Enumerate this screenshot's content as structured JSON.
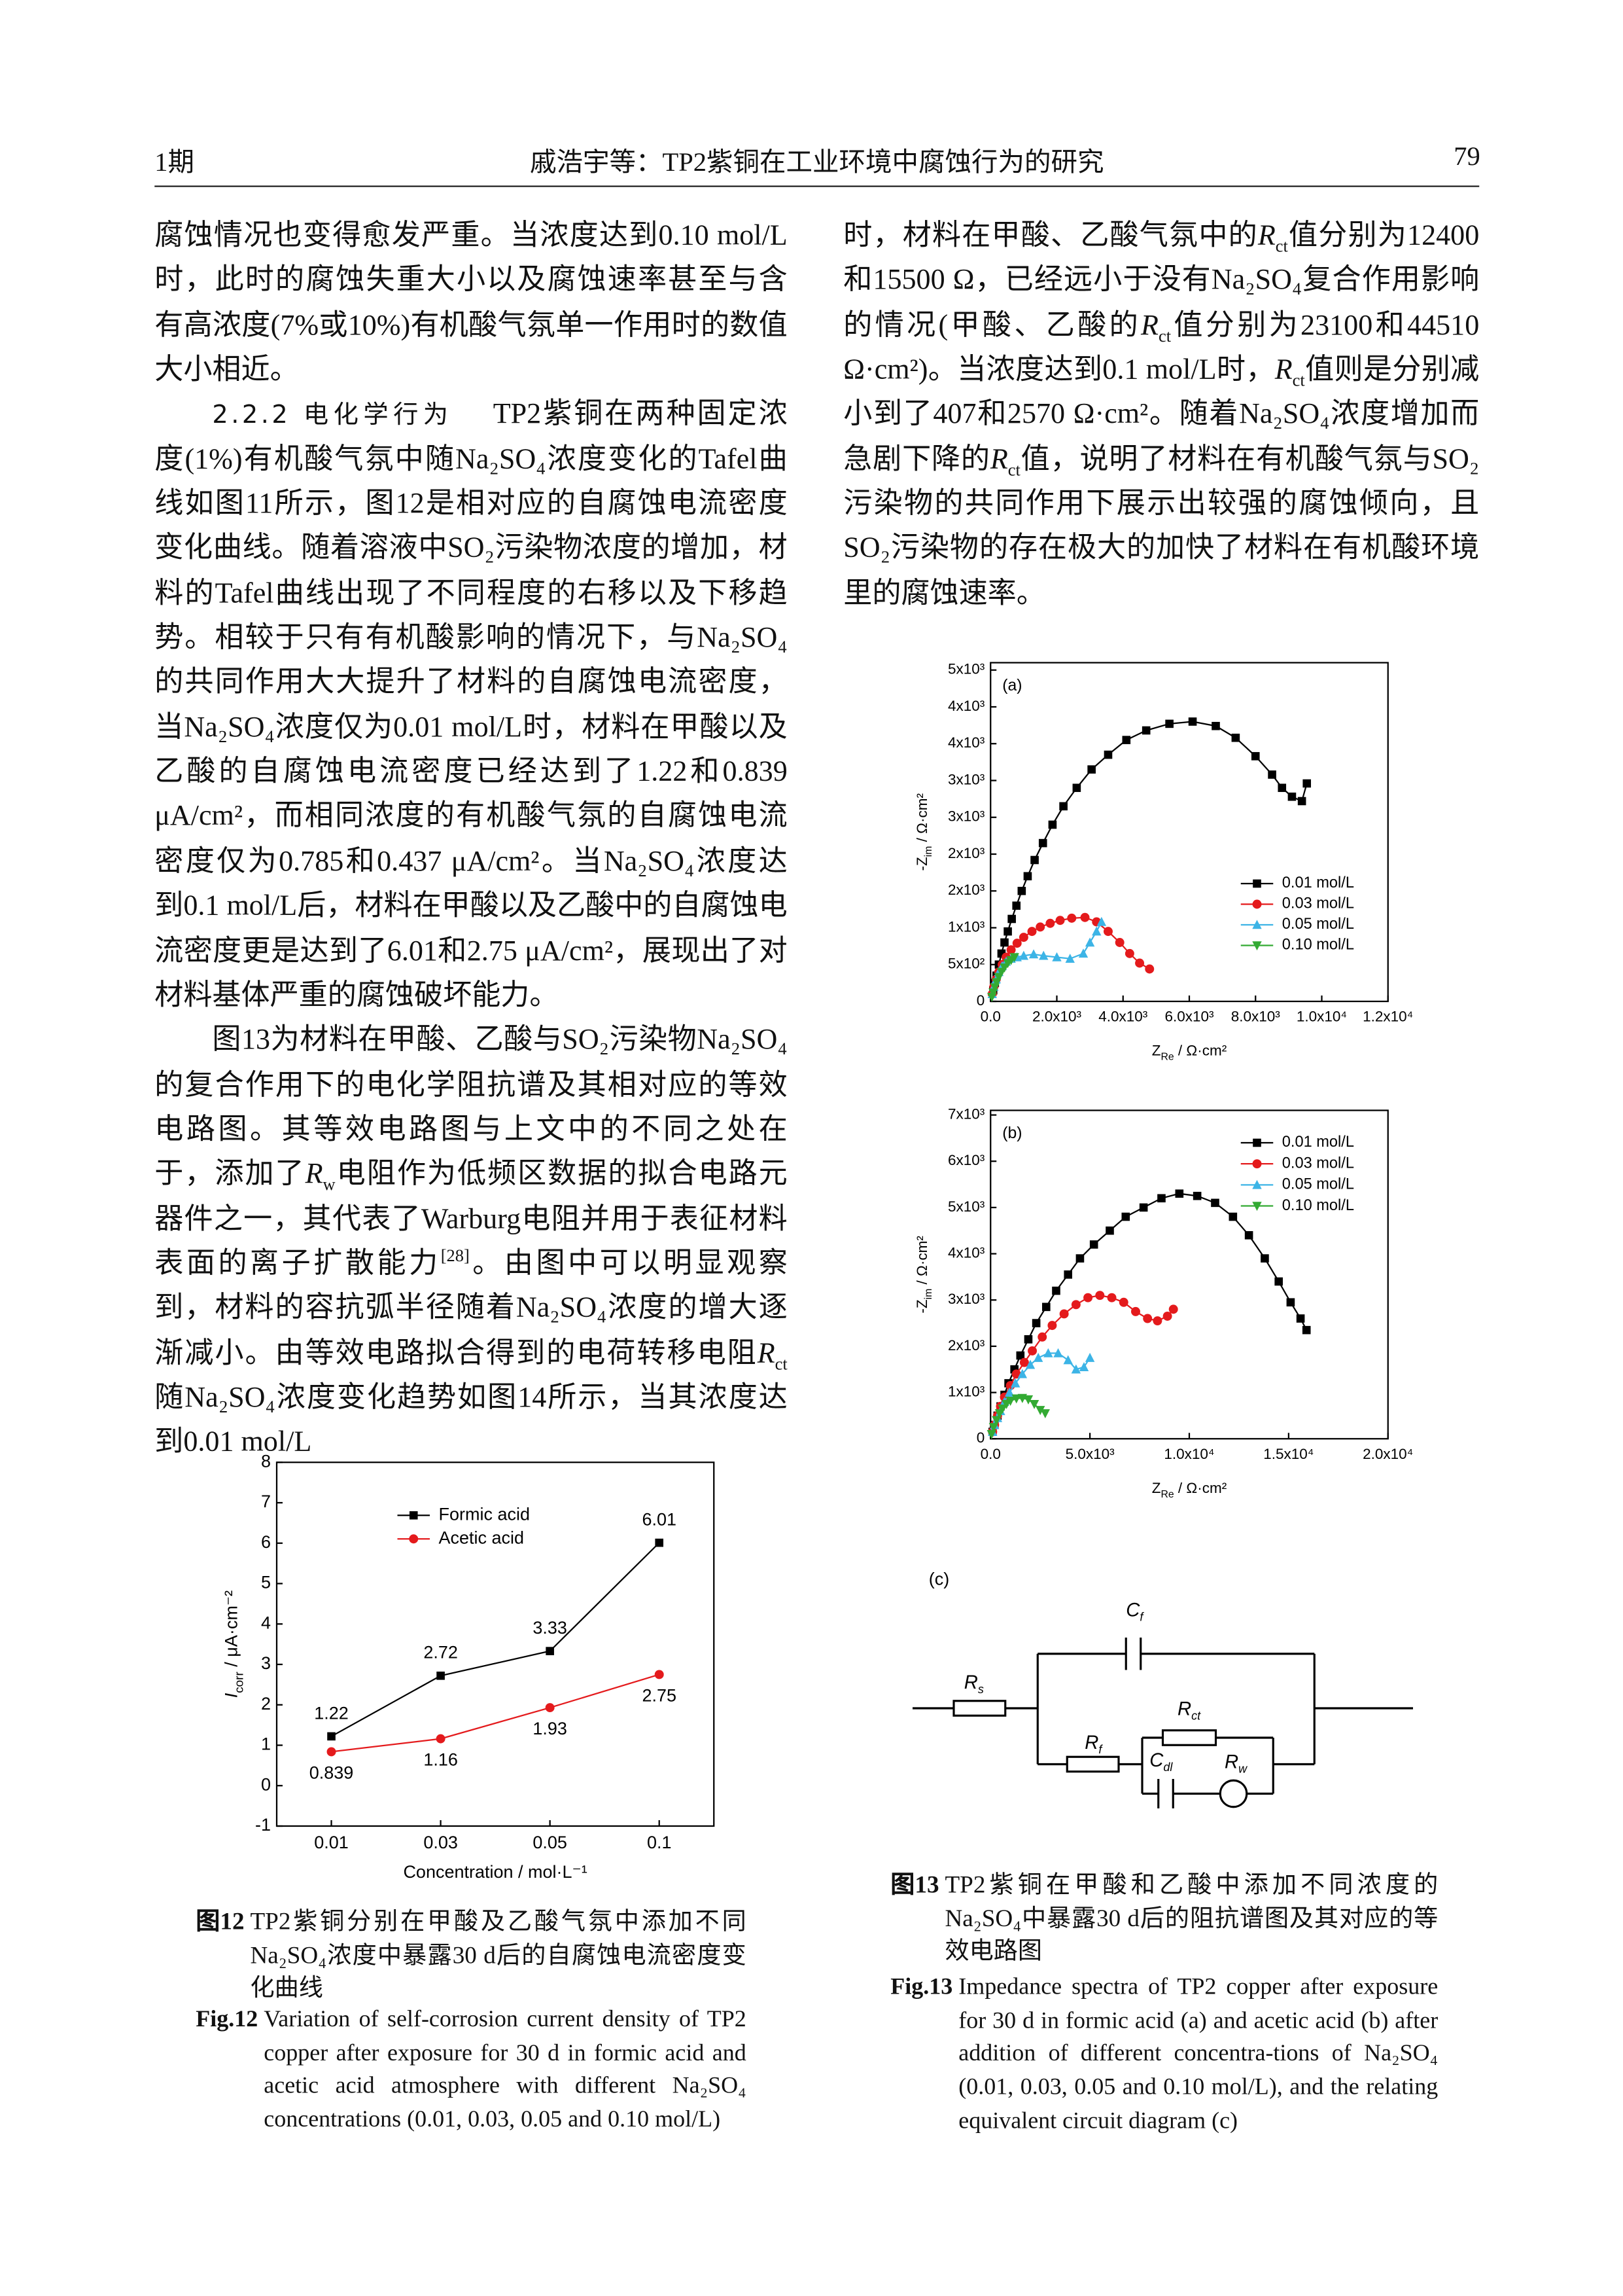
{
  "header": {
    "issue": "1期",
    "running_title": "戚浩宇等：TP2紫铜在工业环境中腐蚀行为的研究",
    "page_number": "79"
  },
  "left_column": {
    "paragraphs": [
      {
        "runs": [
          "腐蚀情况也变得愈发严重。当浓度达到0.10 mol/L时，此时的腐蚀失重大小以及腐蚀速率甚至与含有高浓度(7%或10%)有机酸气氛单一作用时的数值大小相近。"
        ]
      },
      {
        "heading": "2.2.2 电化学行为",
        "runs": [
          "TP2紫铜在两种固定浓度(1%)有机酸气氛中随Na₂SO₄浓度变化的Tafel曲线如图11所示，图12是相对应的自腐蚀电流密度变化曲线。随着溶液中SO₂污染物浓度的增加，材料的Tafel曲线出现了不同程度的右移以及下移趋势。相较于只有有机酸影响的情况下，与Na₂SO₄的共同作用大大提升了材料的自腐蚀电流密度，当Na₂SO₄浓度仅为0.01 mol/L时，材料在甲酸以及乙酸的自腐蚀电流密度已经达到了1.22和0.839 μA/cm²，而相同浓度的有机酸气氛的自腐蚀电流密度仅为0.785和0.437 μA/cm²。当Na₂SO₄浓度达到0.1 mol/L后，材料在甲酸以及乙酸中的自腐蚀电流密度更是达到了6.01和2.75 μA/cm²，展现出了对材料基体严重的腐蚀破坏能力。"
        ]
      },
      {
        "runs": [
          "图13为材料在甲酸、乙酸与SO₂污染物Na₂SO₄的复合作用下的电化学阻抗谱及其相对应的等效电路图。其等效电路图与上文中的不同之处在于，添加了",
          {
            "i": "R"
          },
          {
            "sub": "w"
          },
          "电阻作为低频区数据的拟合电路元器件之一，其代表了Warburg电阻并用于表征材料表面的离子扩散能力",
          {
            "sup": "[28]"
          },
          "。由图中可以明显观察到，材料的容抗弧半径随着Na₂SO₄浓度的增大逐渐减小。由等效电路拟合得到的电荷转移电阻",
          {
            "i": "R"
          },
          {
            "sub": "ct"
          },
          "随Na₂SO₄浓度变化趋势如图14所示，当其浓度达到0.01 mol/L"
        ]
      }
    ]
  },
  "right_column": {
    "paragraphs": [
      {
        "runs": [
          "时，材料在甲酸、乙酸气氛中的",
          {
            "i": "R"
          },
          {
            "sub": "ct"
          },
          "值分别为12400和15500 Ω，已经远小于没有Na₂SO₄复合作用影响的情况(甲酸、乙酸的",
          {
            "i": "R"
          },
          {
            "sub": "ct"
          },
          "值分别为23100和44510 Ω·cm²)。当浓度达到0.1 mol/L时，",
          {
            "i": "R"
          },
          {
            "sub": "ct"
          },
          "值则是分别减小到了407和2570 Ω·cm²。随着Na₂SO₄浓度增加而急剧下降的",
          {
            "i": "R"
          },
          {
            "sub": "ct"
          },
          "值，说明了材料在有机酸气氛与SO₂污染物的共同作用下展示出较强的腐蚀倾向，且SO₂污染物的存在极大的加快了材料在有机酸环境里的腐蚀速率。"
        ]
      }
    ]
  },
  "chart_data": [
    {
      "type": "line",
      "xlabel": [
        "Concentration / mol·L⁻¹"
      ],
      "ylabel": [
        {
          "i": "I"
        },
        {
          "sub": "corr"
        },
        " / μA·cm⁻²"
      ],
      "categories": [
        "0.01",
        "0.03",
        "0.05",
        "0.1"
      ],
      "series": [
        {
          "name": "Formic acid",
          "color": "#000000",
          "marker": "square",
          "values": [
            1.22,
            2.72,
            3.33,
            6.01
          ]
        },
        {
          "name": "Acetic acid",
          "color": "#e41a1c",
          "marker": "circle",
          "values": [
            0.839,
            1.16,
            1.93,
            2.75
          ]
        }
      ],
      "ylim": [
        -1,
        8
      ],
      "yticks": [
        -1,
        0,
        1,
        2,
        3,
        4,
        5,
        6,
        7,
        8
      ],
      "legend": "upper left",
      "data_labels": true
    },
    {
      "type": "line",
      "panel_label": "(a)",
      "xlabel": [
        "Z",
        {
          "sub": "Re"
        },
        " / Ω·cm²"
      ],
      "ylabel": [
        "-Z",
        {
          "sub": "im"
        },
        " / Ω·cm²"
      ],
      "xlim": [
        0,
        12000
      ],
      "xticks": [
        {
          "value": 0,
          "label": "0.0"
        },
        {
          "value": 2000,
          "label": "2.0x10³"
        },
        {
          "value": 4000,
          "label": "4.0x10³"
        },
        {
          "value": 6000,
          "label": "6.0x10³"
        },
        {
          "value": 8000,
          "label": "8.0x10³"
        },
        {
          "value": 10000,
          "label": "1.0x10⁴"
        },
        {
          "value": 12000,
          "label": "1.2x10⁴"
        }
      ],
      "ylim": [
        0,
        4600
      ],
      "yticks": [
        0,
        {
          "value": 500,
          "label": "5x10²"
        },
        {
          "value": 1000,
          "label": "1x10³"
        },
        {
          "value": 1500,
          "label": "2x10³"
        },
        {
          "value": 2000,
          "label": "2x10³"
        },
        {
          "value": 2500,
          "label": "3x10³"
        },
        {
          "value": 3000,
          "label": "3x10³"
        },
        {
          "value": 3500,
          "label": "4x10³"
        },
        {
          "value": 4000,
          "label": "4x10³"
        },
        {
          "value": 4500,
          "label": "5x10³"
        }
      ],
      "legend": "lower right",
      "series": [
        {
          "name": "0.01 mol/L",
          "color": "#000000",
          "marker": "square",
          "x": [
            80,
            130,
            180,
            250,
            330,
            420,
            520,
            640,
            780,
            940,
            1120,
            1330,
            1580,
            1870,
            2200,
            2600,
            3050,
            3550,
            4100,
            4700,
            5400,
            6100,
            6800,
            7400,
            8000,
            8500,
            8800,
            9100,
            9400,
            9550
          ],
          "values": [
            150,
            250,
            350,
            500,
            650,
            800,
            950,
            1120,
            1300,
            1500,
            1700,
            1920,
            2150,
            2400,
            2650,
            2900,
            3150,
            3350,
            3550,
            3680,
            3770,
            3800,
            3740,
            3580,
            3330,
            3080,
            2900,
            2780,
            2720,
            2960
          ]
        },
        {
          "name": "0.03 mol/L",
          "color": "#e41a1c",
          "marker": "circle",
          "x": [
            50,
            100,
            170,
            250,
            350,
            470,
            620,
            800,
            1000,
            1250,
            1500,
            1800,
            2100,
            2450,
            2850,
            3200,
            3550,
            3900,
            4200,
            4500,
            4800
          ],
          "values": [
            100,
            200,
            300,
            400,
            500,
            600,
            700,
            790,
            870,
            950,
            1010,
            1060,
            1100,
            1130,
            1140,
            1080,
            950,
            800,
            650,
            520,
            440
          ]
        },
        {
          "name": "0.05 mol/L",
          "color": "#3cb4e6",
          "marker": "triangle-up",
          "x": [
            50,
            100,
            170,
            250,
            350,
            470,
            620,
            800,
            1000,
            1300,
            1600,
            2000,
            2400,
            2800,
            3000,
            3200,
            3350
          ],
          "values": [
            100,
            200,
            300,
            400,
            480,
            540,
            580,
            600,
            620,
            640,
            620,
            600,
            580,
            650,
            800,
            950,
            1080
          ]
        },
        {
          "name": "0.10 mol/L",
          "color": "#33aa33",
          "marker": "triangle-down",
          "x": [
            40,
            80,
            130,
            180,
            250,
            330,
            420,
            520,
            620,
            720
          ],
          "values": [
            60,
            120,
            190,
            260,
            330,
            400,
            460,
            520,
            560,
            600
          ]
        }
      ]
    },
    {
      "type": "line",
      "panel_label": "(b)",
      "xlabel": [
        "Z",
        {
          "sub": "Re"
        },
        " / Ω·cm²"
      ],
      "ylabel": [
        "-Z",
        {
          "sub": "im"
        },
        " / Ω·cm²"
      ],
      "xlim": [
        0,
        20000
      ],
      "xticks": [
        {
          "value": 0,
          "label": "0.0"
        },
        {
          "value": 5000,
          "label": "5.0x10³"
        },
        {
          "value": 10000,
          "label": "1.0x10⁴"
        },
        {
          "value": 15000,
          "label": "1.5x10⁴"
        },
        {
          "value": 20000,
          "label": "2.0x10⁴"
        }
      ],
      "ylim": [
        0,
        7100
      ],
      "yticks": [
        0,
        {
          "value": 1000,
          "label": "1x10³"
        },
        {
          "value": 2000,
          "label": "2x10³"
        },
        {
          "value": 3000,
          "label": "3x10³"
        },
        {
          "value": 4000,
          "label": "4x10³"
        },
        {
          "value": 5000,
          "label": "5x10³"
        },
        {
          "value": 6000,
          "label": "6x10³"
        },
        {
          "value": 7000,
          "label": "7x10³"
        }
      ],
      "legend": "upper right",
      "series": [
        {
          "name": "0.01 mol/L",
          "color": "#000000",
          "marker": "square",
          "x": [
            100,
            200,
            350,
            500,
            700,
            900,
            1200,
            1500,
            1900,
            2300,
            2800,
            3300,
            3900,
            4500,
            5200,
            6000,
            6800,
            7700,
            8600,
            9500,
            10400,
            11300,
            12200,
            13000,
            13800,
            14500,
            15100,
            15600,
            15900
          ],
          "values": [
            150,
            300,
            500,
            700,
            950,
            1200,
            1500,
            1800,
            2150,
            2500,
            2850,
            3200,
            3550,
            3900,
            4200,
            4500,
            4800,
            5000,
            5200,
            5300,
            5250,
            5100,
            4800,
            4400,
            3900,
            3400,
            2950,
            2600,
            2350
          ]
        },
        {
          "name": "0.03 mol/L",
          "color": "#e41a1c",
          "marker": "circle",
          "x": [
            100,
            200,
            350,
            500,
            700,
            1000,
            1300,
            1700,
            2100,
            2600,
            3100,
            3700,
            4300,
            4900,
            5500,
            6100,
            6700,
            7300,
            7900,
            8400,
            8900,
            9200
          ],
          "values": [
            150,
            300,
            500,
            700,
            900,
            1150,
            1400,
            1650,
            1900,
            2200,
            2450,
            2700,
            2900,
            3050,
            3100,
            3050,
            2950,
            2750,
            2600,
            2550,
            2650,
            2800
          ]
        },
        {
          "name": "0.05 mol/L",
          "color": "#3cb4e6",
          "marker": "triangle-up",
          "x": [
            100,
            200,
            350,
            500,
            700,
            950,
            1250,
            1600,
            2000,
            2400,
            2900,
            3400,
            3900,
            4300,
            4700,
            5000
          ],
          "values": [
            150,
            300,
            450,
            600,
            800,
            1000,
            1200,
            1400,
            1600,
            1750,
            1850,
            1850,
            1700,
            1500,
            1550,
            1750
          ]
        },
        {
          "name": "0.10 mol/L",
          "color": "#33aa33",
          "marker": "triangle-down",
          "x": [
            50,
            150,
            300,
            450,
            600,
            800,
            1000,
            1300,
            1600,
            1900,
            2200,
            2500,
            2750
          ],
          "values": [
            100,
            250,
            400,
            550,
            650,
            750,
            820,
            870,
            880,
            850,
            750,
            620,
            550
          ]
        }
      ]
    }
  ],
  "circuit": {
    "panel_label": "(c)",
    "elements": [
      {
        "symbol": "R",
        "sub": "s"
      },
      {
        "symbol": "C",
        "sub": "f"
      },
      {
        "symbol": "R",
        "sub": "f"
      },
      {
        "symbol": "R",
        "sub": "ct"
      },
      {
        "symbol": "C",
        "sub": "dl"
      },
      {
        "symbol": "R",
        "sub": "w"
      }
    ]
  },
  "captions": [
    {
      "label_cn": "图12",
      "text_cn": "TP2紫铜分别在甲酸及乙酸气氛中添加不同Na₂SO₄浓度中暴露30 d后的自腐蚀电流密度变化曲线",
      "label_en": "Fig.12",
      "text_en": "Variation of self-corrosion current density of TP2 copper after exposure for 30 d in formic acid and acetic acid atmosphere with different Na₂SO₄ concentrations (0.01, 0.03, 0.05 and 0.10 mol/L)"
    },
    {
      "label_cn": "图13",
      "text_cn": "TP2紫铜在甲酸和乙酸中添加不同浓度的Na₂SO₄中暴露30 d后的阻抗谱图及其对应的等效电路图",
      "label_en": "Fig.13",
      "text_en": "Impedance spectra of TP2 copper after exposure for 30 d in formic acid (a) and acetic acid (b) after addition of different concentra-tions of Na₂SO₄ (0.01, 0.03, 0.05 and 0.10 mol/L), and the relating equivalent circuit diagram (c)"
    }
  ]
}
